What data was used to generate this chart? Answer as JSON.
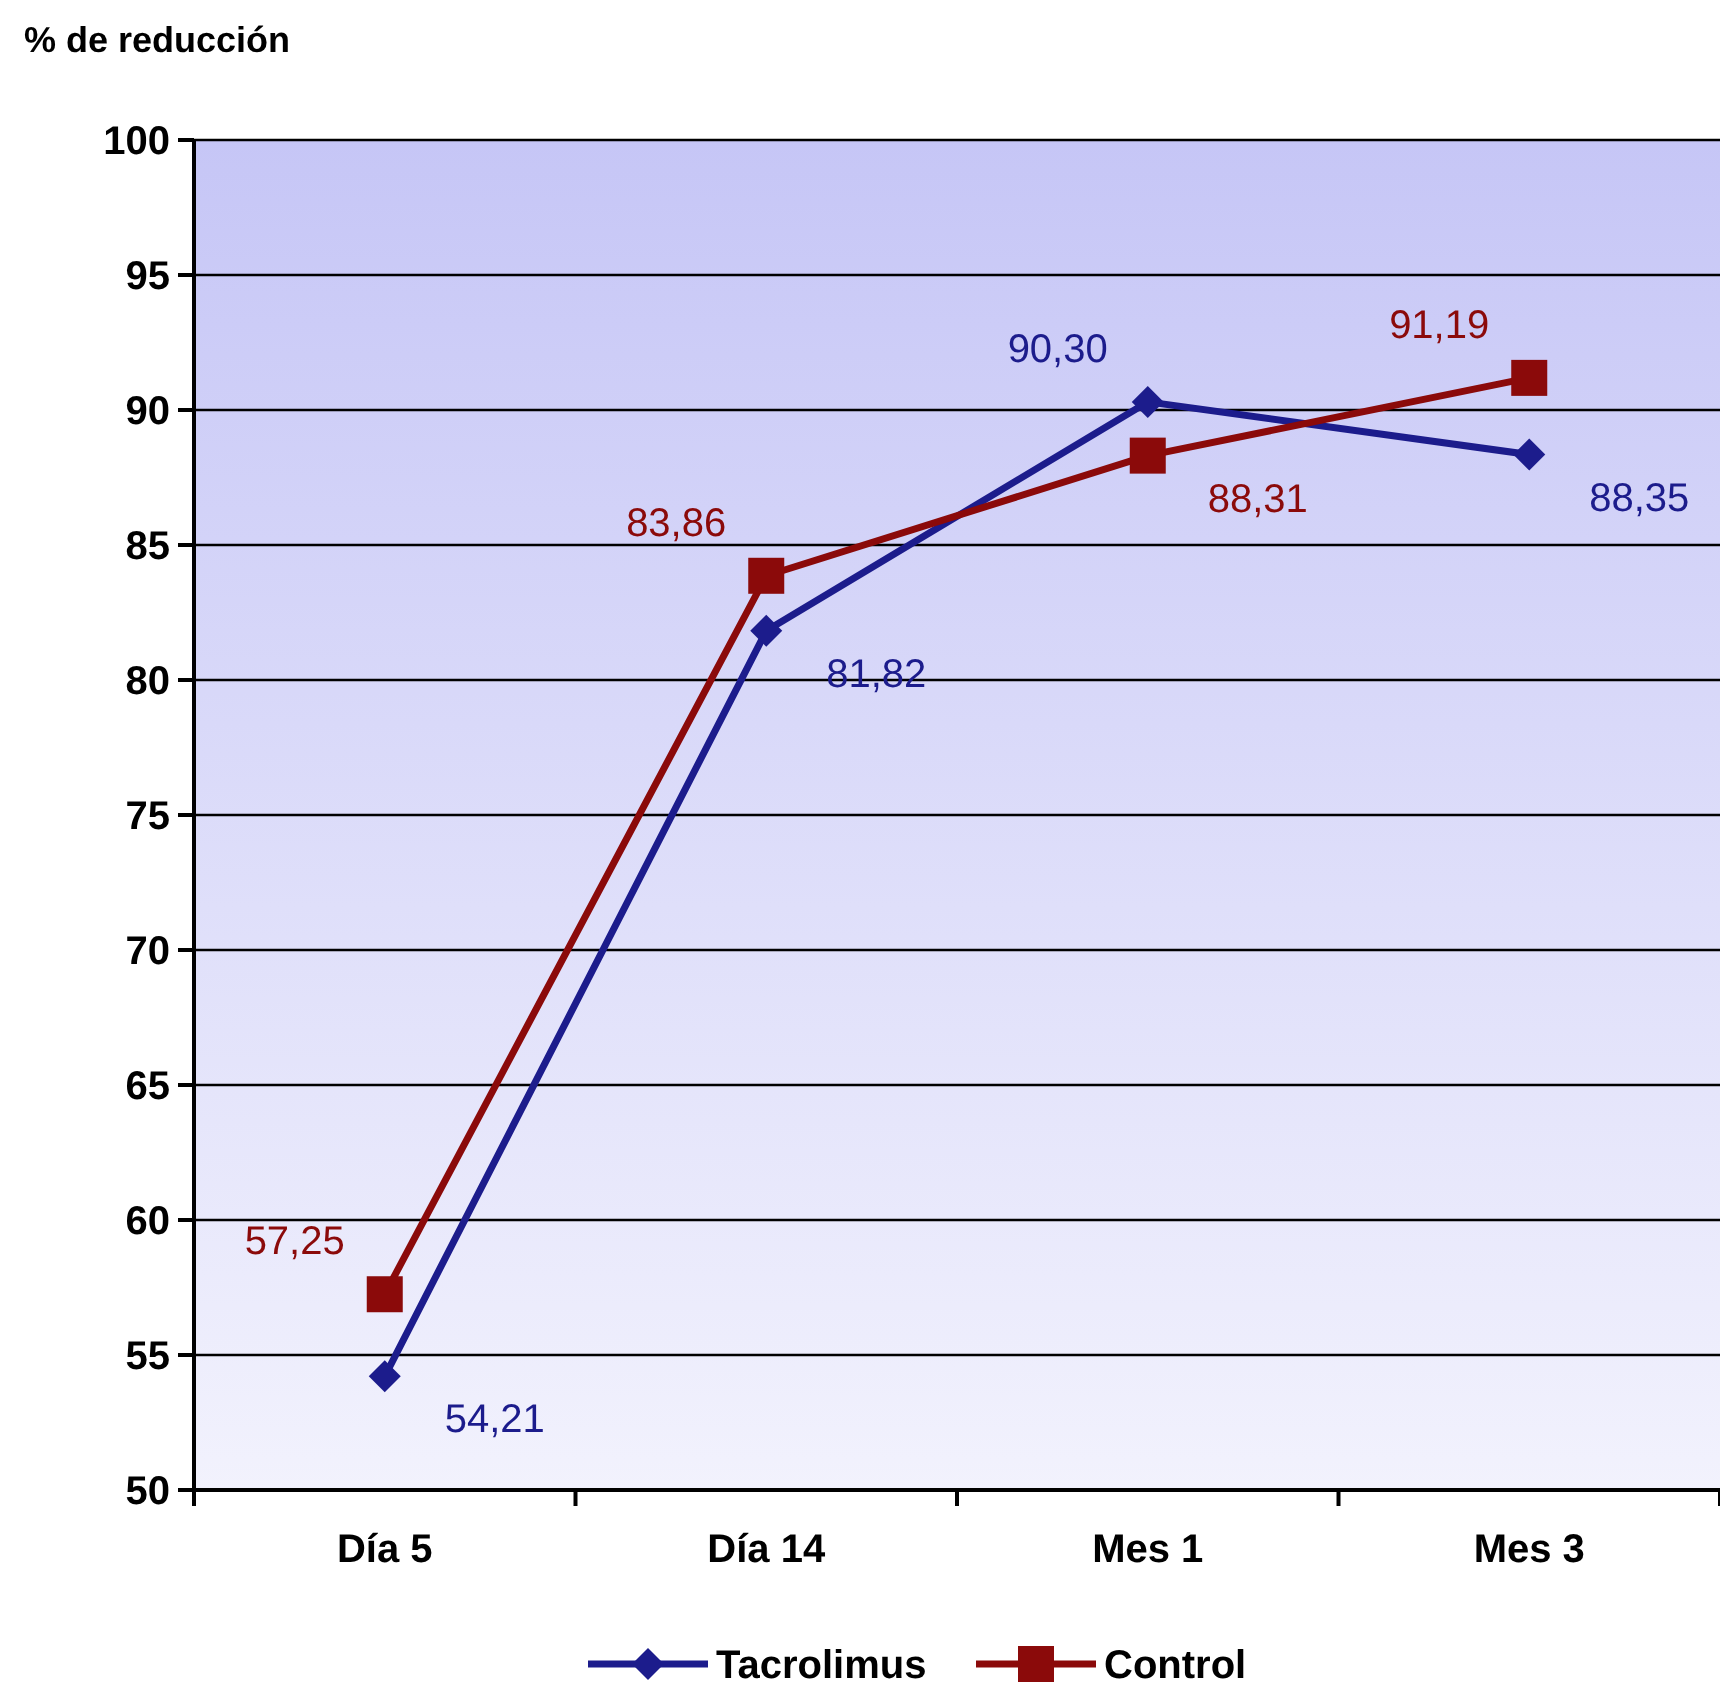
{
  "chart_data": {
    "type": "line",
    "ylabel": "% de reducción",
    "categories": [
      "Día 5",
      "Día 14",
      "Mes 1",
      "Mes 3"
    ],
    "ylim": [
      50,
      100
    ],
    "yticks": [
      50,
      55,
      60,
      65,
      70,
      75,
      80,
      85,
      90,
      95,
      100
    ],
    "grid": "y",
    "legend": "bottom",
    "line_style": "solid",
    "series": [
      {
        "name": "Tacrolimus",
        "color": "#1c1c8c",
        "marker": "diamond",
        "values": [
          54.21,
          81.82,
          90.3,
          88.35
        ],
        "value_labels": [
          "54,21",
          "81,82",
          "90,30",
          "88,35"
        ]
      },
      {
        "name": "Control",
        "color": "#8b0a0a",
        "marker": "square",
        "values": [
          57.25,
          83.86,
          88.31,
          91.19
        ],
        "value_labels": [
          "57,25",
          "83,86",
          "88,31",
          "91,19"
        ]
      }
    ]
  }
}
